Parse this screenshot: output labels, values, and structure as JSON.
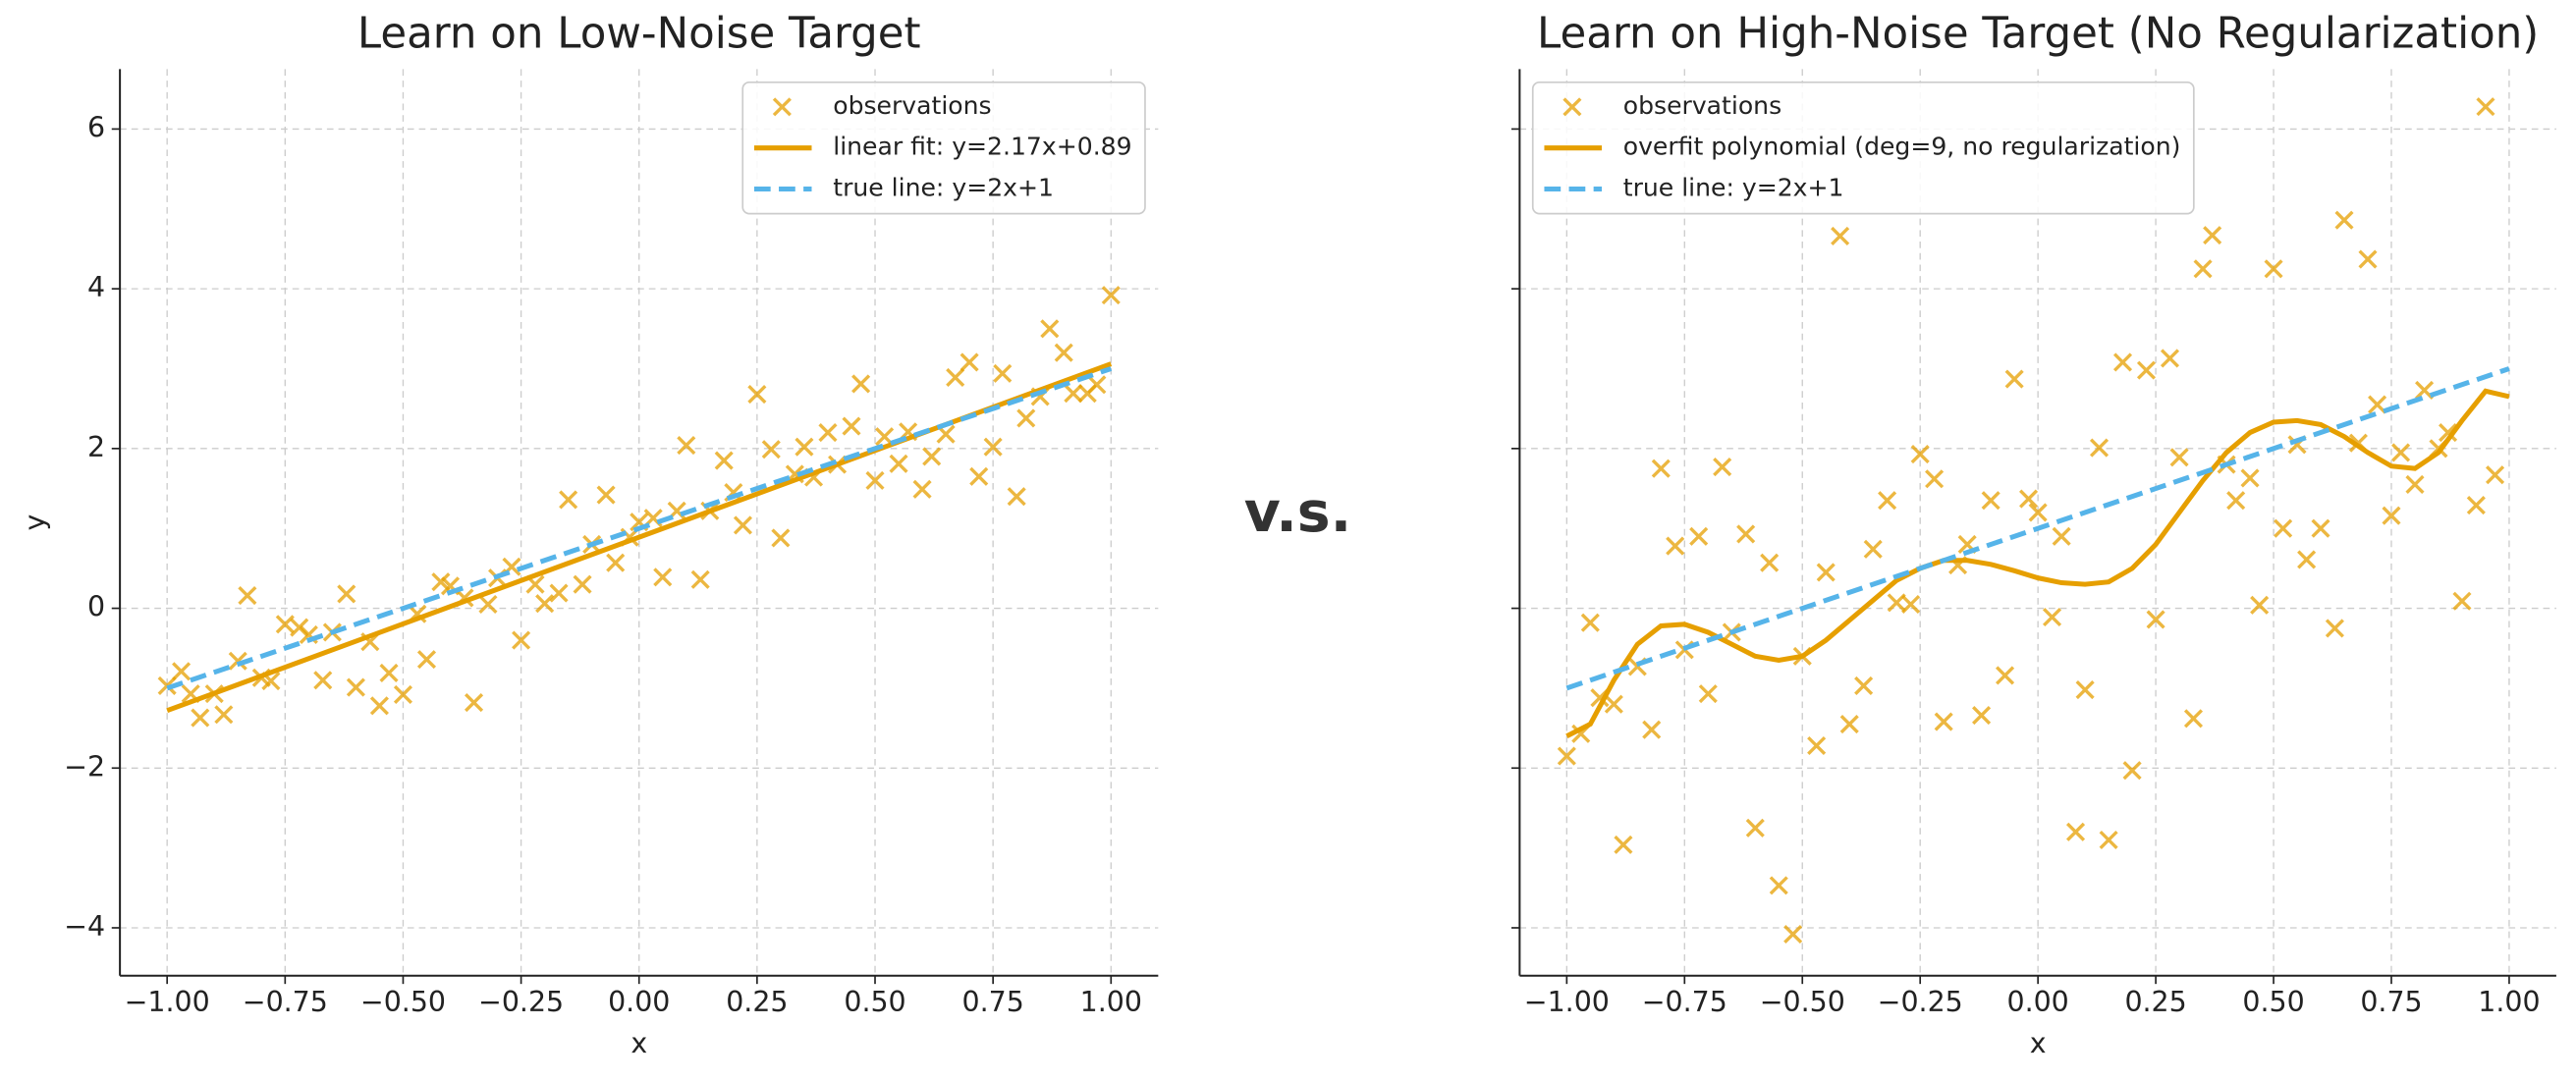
{
  "center_text": "v.s.",
  "chart_data": [
    {
      "type": "scatter",
      "title": "Learn on Low-Noise Target",
      "xlabel": "x",
      "ylabel": "y",
      "xlim": [
        -1.1,
        1.1
      ],
      "ylim": [
        -4.6,
        6.75
      ],
      "xticks": [
        {
          "value": -1,
          "label": "−1.00"
        },
        {
          "value": -0.75,
          "label": "−0.75"
        },
        {
          "value": -0.5,
          "label": "−0.50"
        },
        {
          "value": -0.25,
          "label": "−0.25"
        },
        {
          "value": 0,
          "label": "0.00"
        },
        {
          "value": 0.25,
          "label": "0.25"
        },
        {
          "value": 0.5,
          "label": "0.50"
        },
        {
          "value": 0.75,
          "label": "0.75"
        },
        {
          "value": 1,
          "label": "1.00"
        }
      ],
      "yticks": [
        {
          "value": -4,
          "label": "−4"
        },
        {
          "value": -2,
          "label": "−2"
        },
        0,
        2,
        4,
        6
      ],
      "grid": true,
      "legend": "upper right",
      "series": [
        {
          "name": "observations",
          "kind": "scatter",
          "color": "#E69F00",
          "x": [
            -1.0,
            -0.97,
            -0.95,
            -0.93,
            -0.9,
            -0.88,
            -0.85,
            -0.83,
            -0.8,
            -0.78,
            -0.75,
            -0.72,
            -0.7,
            -0.67,
            -0.65,
            -0.62,
            -0.6,
            -0.57,
            -0.55,
            -0.53,
            -0.5,
            -0.47,
            -0.45,
            -0.42,
            -0.4,
            -0.37,
            -0.35,
            -0.32,
            -0.3,
            -0.27,
            -0.25,
            -0.22,
            -0.2,
            -0.17,
            -0.15,
            -0.12,
            -0.1,
            -0.07,
            -0.05,
            -0.02,
            0.0,
            0.03,
            0.05,
            0.08,
            0.1,
            0.13,
            0.15,
            0.18,
            0.2,
            0.22,
            0.25,
            0.28,
            0.3,
            0.33,
            0.35,
            0.37,
            0.4,
            0.42,
            0.45,
            0.47,
            0.5,
            0.52,
            0.55,
            0.57,
            0.6,
            0.62,
            0.65,
            0.67,
            0.7,
            0.72,
            0.75,
            0.77,
            0.8,
            0.82,
            0.85,
            0.87,
            0.9,
            0.92,
            0.95,
            0.97,
            1.0
          ],
          "values": [
            -0.97,
            -0.79,
            -1.07,
            -1.37,
            -1.07,
            -1.33,
            -0.66,
            0.16,
            -0.87,
            -0.91,
            -0.2,
            -0.24,
            -0.33,
            -0.9,
            -0.3,
            0.18,
            -0.99,
            -0.42,
            -1.22,
            -0.81,
            -1.08,
            -0.07,
            -0.64,
            0.33,
            0.28,
            0.13,
            -1.18,
            0.05,
            0.38,
            0.52,
            -0.4,
            0.3,
            0.06,
            0.19,
            1.36,
            0.3,
            0.8,
            1.42,
            0.57,
            0.89,
            1.08,
            1.13,
            0.39,
            1.22,
            2.04,
            0.36,
            1.22,
            1.85,
            1.45,
            1.04,
            2.68,
            1.99,
            0.88,
            1.68,
            2.02,
            1.64,
            2.2,
            1.8,
            2.28,
            2.81,
            1.6,
            2.15,
            1.81,
            2.21,
            1.49,
            1.9,
            2.18,
            2.89,
            3.08,
            1.65,
            2.02,
            2.94,
            1.4,
            2.38,
            2.65,
            3.5,
            3.2,
            2.69,
            2.69,
            2.8,
            3.92
          ]
        },
        {
          "name": "linear fit: y=2.17x+0.89",
          "kind": "line",
          "color": "#E69F00",
          "x": [
            -1,
            1
          ],
          "values": [
            -1.28,
            3.06
          ]
        },
        {
          "name": "true line: y=2x+1",
          "kind": "line",
          "dash": true,
          "color": "#56B4E9",
          "x": [
            -1,
            1
          ],
          "values": [
            -1,
            3
          ]
        }
      ]
    },
    {
      "type": "scatter",
      "title": "Learn on High-Noise Target (No Regularization)",
      "xlabel": "x",
      "xlim": [
        -1.1,
        1.1
      ],
      "ylim": [
        -4.6,
        6.75
      ],
      "xticks": [
        {
          "value": -1,
          "label": "−1.00"
        },
        {
          "value": -0.75,
          "label": "−0.75"
        },
        {
          "value": -0.5,
          "label": "−0.50"
        },
        {
          "value": -0.25,
          "label": "−0.25"
        },
        {
          "value": 0,
          "label": "0.00"
        },
        {
          "value": 0.25,
          "label": "0.25"
        },
        {
          "value": 0.5,
          "label": "0.50"
        },
        {
          "value": 0.75,
          "label": "0.75"
        },
        {
          "value": 1,
          "label": "1.00"
        }
      ],
      "yticks": [
        -4,
        -2,
        0,
        2,
        4,
        6
      ],
      "ytick_labels": false,
      "grid": true,
      "legend": "upper left",
      "series": [
        {
          "name": "observations",
          "kind": "scatter",
          "color": "#E69F00",
          "x": [
            -1.0,
            -0.97,
            -0.95,
            -0.93,
            -0.9,
            -0.88,
            -0.85,
            -0.82,
            -0.8,
            -0.77,
            -0.75,
            -0.72,
            -0.7,
            -0.67,
            -0.65,
            -0.62,
            -0.6,
            -0.57,
            -0.55,
            -0.52,
            -0.5,
            -0.47,
            -0.45,
            -0.42,
            -0.4,
            -0.37,
            -0.35,
            -0.32,
            -0.3,
            -0.27,
            -0.25,
            -0.22,
            -0.2,
            -0.17,
            -0.15,
            -0.12,
            -0.1,
            -0.07,
            -0.05,
            -0.02,
            0.0,
            0.03,
            0.05,
            0.08,
            0.1,
            0.13,
            0.15,
            0.18,
            0.2,
            0.23,
            0.25,
            0.28,
            0.3,
            0.33,
            0.35,
            0.37,
            0.4,
            0.42,
            0.45,
            0.47,
            0.5,
            0.52,
            0.55,
            0.57,
            0.6,
            0.63,
            0.65,
            0.68,
            0.7,
            0.72,
            0.75,
            0.77,
            0.8,
            0.82,
            0.85,
            0.87,
            0.9,
            0.93,
            0.95,
            0.97
          ],
          "values": [
            -1.85,
            -1.57,
            -0.18,
            -1.12,
            -1.2,
            -2.96,
            -0.73,
            -1.52,
            1.75,
            0.78,
            -0.52,
            0.9,
            -1.07,
            1.77,
            -0.3,
            0.93,
            -2.75,
            0.57,
            -3.47,
            -4.08,
            -0.6,
            -1.72,
            0.45,
            4.66,
            -1.45,
            -0.97,
            0.74,
            1.35,
            0.07,
            0.05,
            1.93,
            1.62,
            -1.42,
            0.54,
            0.8,
            -1.34,
            1.35,
            -0.84,
            2.87,
            1.37,
            1.2,
            -0.11,
            0.9,
            -2.8,
            -1.02,
            2.01,
            -2.9,
            3.08,
            -2.03,
            2.98,
            -0.14,
            3.13,
            1.89,
            -1.38,
            4.25,
            4.67,
            1.8,
            1.35,
            1.63,
            0.04,
            4.25,
            1.0,
            2.05,
            0.61,
            1.0,
            -0.25,
            4.86,
            2.07,
            4.37,
            2.55,
            1.16,
            1.95,
            1.55,
            2.73,
            2.0,
            2.2,
            0.09,
            1.29,
            6.28,
            1.67
          ]
        },
        {
          "name": "overfit polynomial (deg=9, no regularization)",
          "kind": "line",
          "color": "#E69F00",
          "x": [
            -1,
            -0.95,
            -0.9,
            -0.85,
            -0.8,
            -0.75,
            -0.7,
            -0.65,
            -0.6,
            -0.55,
            -0.5,
            -0.45,
            -0.4,
            -0.35,
            -0.3,
            -0.25,
            -0.2,
            -0.15,
            -0.1,
            -0.05,
            0,
            0.05,
            0.1,
            0.15,
            0.2,
            0.25,
            0.3,
            0.35,
            0.4,
            0.45,
            0.5,
            0.55,
            0.6,
            0.65,
            0.7,
            0.75,
            0.8,
            0.85,
            0.9,
            0.95,
            1
          ],
          "values": [
            -1.6,
            -1.45,
            -0.9,
            -0.45,
            -0.22,
            -0.2,
            -0.3,
            -0.45,
            -0.6,
            -0.65,
            -0.6,
            -0.4,
            -0.15,
            0.1,
            0.35,
            0.5,
            0.6,
            0.6,
            0.55,
            0.47,
            0.38,
            0.32,
            0.3,
            0.33,
            0.5,
            0.8,
            1.2,
            1.6,
            1.95,
            2.2,
            2.33,
            2.35,
            2.3,
            2.15,
            1.95,
            1.78,
            1.75,
            1.95,
            2.35,
            2.72,
            2.65
          ]
        },
        {
          "name": "true line: y=2x+1",
          "kind": "line",
          "dash": true,
          "color": "#56B4E9",
          "x": [
            -1,
            1
          ],
          "values": [
            -1,
            3
          ]
        }
      ]
    }
  ]
}
